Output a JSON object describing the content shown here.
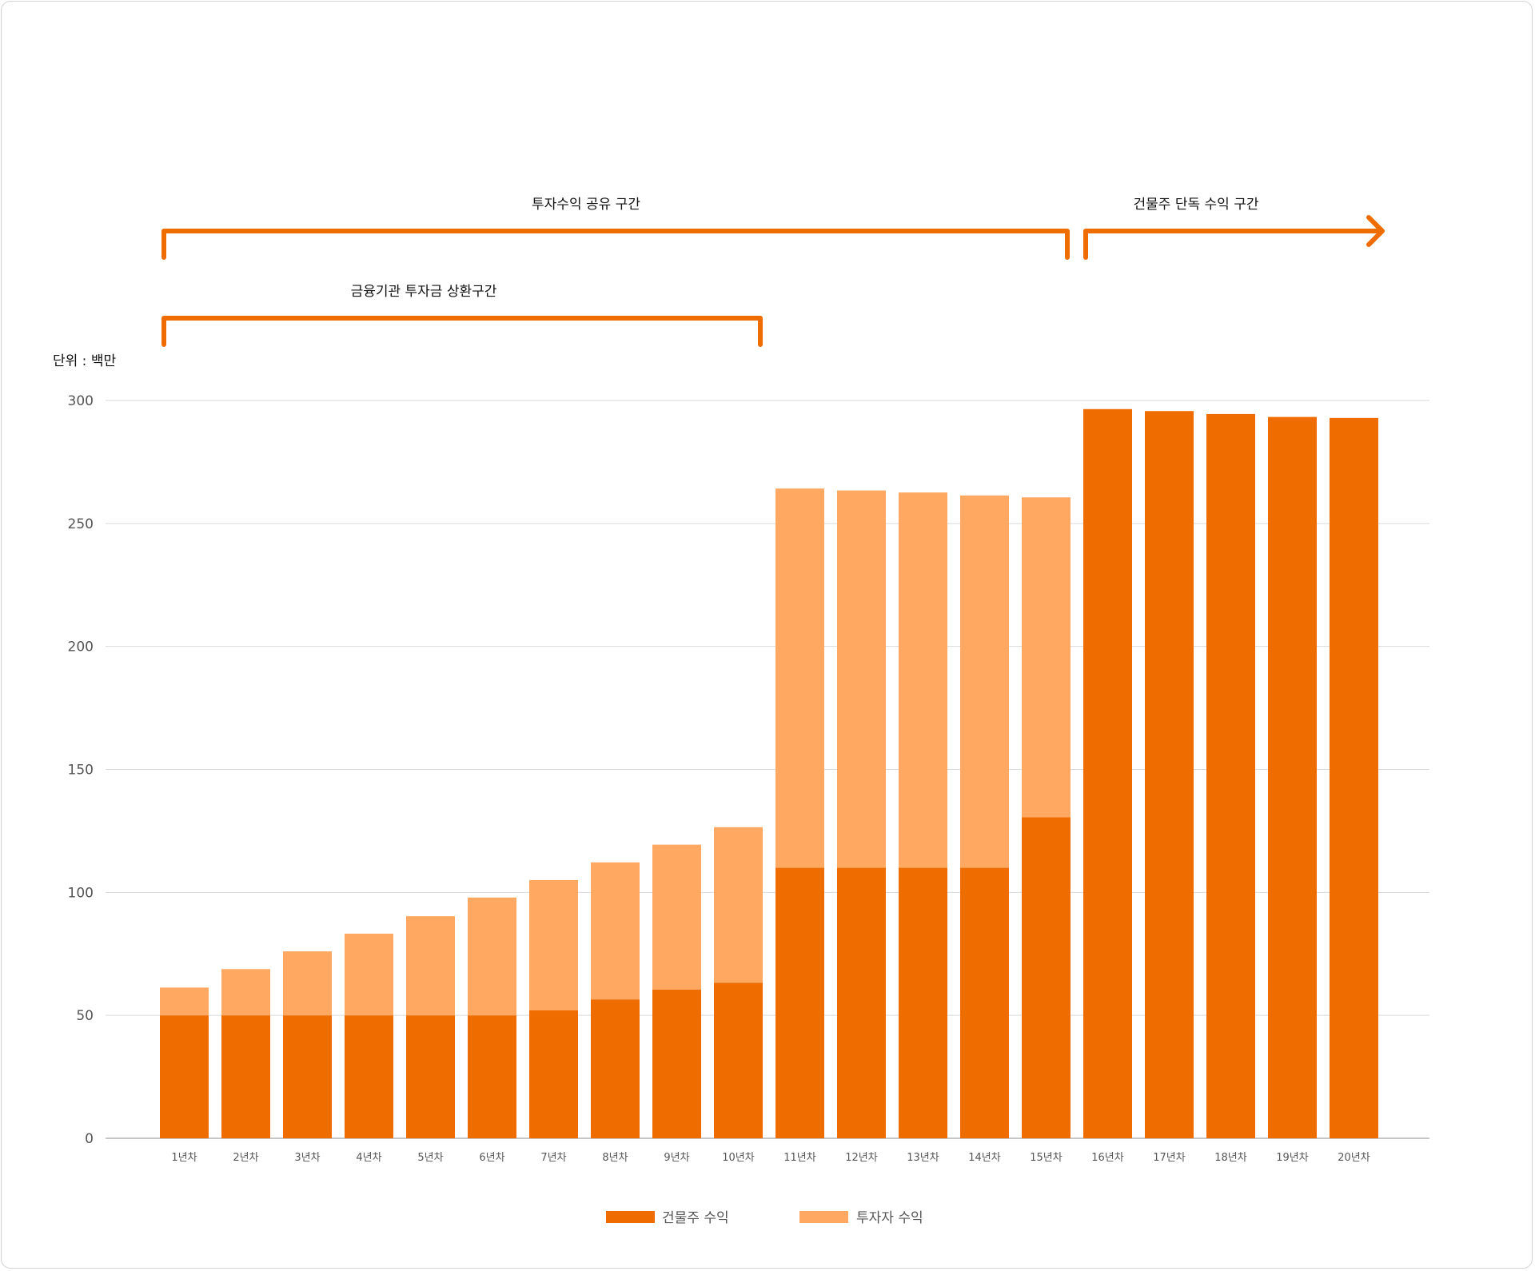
{
  "chart_data": {
    "type": "bar",
    "stacked": true,
    "unit_label": "단위 : 백만",
    "categories": [
      "1년차",
      "2년차",
      "3년차",
      "4년차",
      "5년차",
      "6년차",
      "7년차",
      "8년차",
      "9년차",
      "10년차",
      "11년차",
      "12년차",
      "13년차",
      "14년차",
      "15년차",
      "16년차",
      "17년차",
      "18년차",
      "19년차",
      "20년차"
    ],
    "series": [
      {
        "name": "건물주 수익",
        "color": "#ef6c00",
        "values": [
          50,
          50,
          50,
          50,
          50,
          50,
          52,
          56.5,
          60.5,
          63.3,
          110,
          110,
          110,
          110,
          130.5,
          296.5,
          295.7,
          294.5,
          293.3,
          292.9
        ]
      },
      {
        "name": "투자자 수익",
        "color": "#ffa862",
        "values": [
          11.3,
          18.8,
          26,
          33.2,
          40.3,
          47.9,
          53,
          55.7,
          58.9,
          63.2,
          154.2,
          153.4,
          152.6,
          151.4,
          130.1,
          0,
          0,
          0,
          0,
          0
        ]
      }
    ],
    "yticks": [
      "0",
      "50",
      "100",
      "150",
      "200",
      "250",
      "300"
    ],
    "ylim": [
      0,
      300
    ],
    "grid": true,
    "legend": "bottom",
    "annotations": {
      "shared": "투자수익 공유 구간",
      "owner_only": "건물주 단독 수익 구간",
      "repayment": "금융기관 투자금 상환구간"
    },
    "annotation_color": "#ef6c00"
  }
}
